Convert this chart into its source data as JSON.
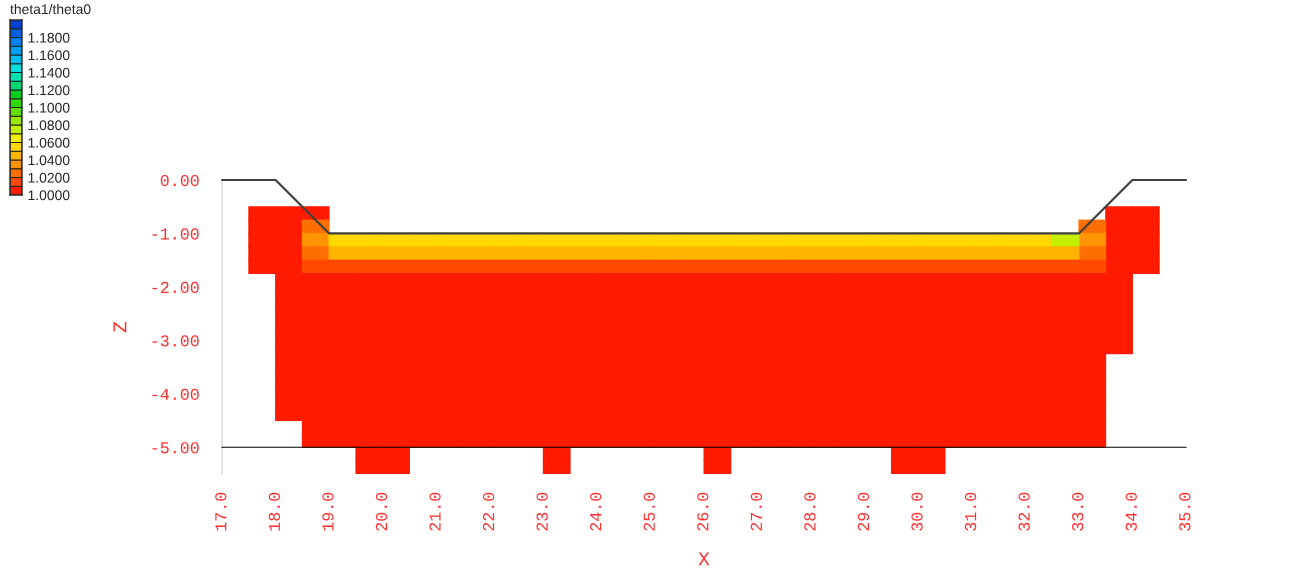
{
  "chart_data": {
    "type": "scatter",
    "xlabel": "X",
    "ylabel": "Z",
    "clabel": "theta1/theta0",
    "marker": "square",
    "xlim": [
      17,
      35
    ],
    "ylim": [
      -5.5,
      0
    ],
    "xticks": [
      {
        "value": 17,
        "label": "17.0"
      },
      {
        "value": 18,
        "label": "18.0"
      },
      {
        "value": 19,
        "label": "19.0"
      },
      {
        "value": 20,
        "label": "20.0"
      },
      {
        "value": 21,
        "label": "21.0"
      },
      {
        "value": 22,
        "label": "22.0"
      },
      {
        "value": 23,
        "label": "23.0"
      },
      {
        "value": 24,
        "label": "24.0"
      },
      {
        "value": 25,
        "label": "25.0"
      },
      {
        "value": 26,
        "label": "26.0"
      },
      {
        "value": 27,
        "label": "27.0"
      },
      {
        "value": 28,
        "label": "28.0"
      },
      {
        "value": 29,
        "label": "29.0"
      },
      {
        "value": 30,
        "label": "30.0"
      },
      {
        "value": 31,
        "label": "31.0"
      },
      {
        "value": 32,
        "label": "32.0"
      },
      {
        "value": 33,
        "label": "33.0"
      },
      {
        "value": 34,
        "label": "34.0"
      },
      {
        "value": 35,
        "label": "35.0"
      }
    ],
    "yticks": [
      {
        "value": 0,
        "label": "0.00"
      },
      {
        "value": -1,
        "label": "-1.00"
      },
      {
        "value": -2,
        "label": "-2.00"
      },
      {
        "value": -3,
        "label": "-3.00"
      },
      {
        "value": -4,
        "label": "-4.00"
      },
      {
        "value": -5,
        "label": "-5.00"
      }
    ],
    "clim": [
      1.0,
      1.2
    ],
    "cticks": [
      {
        "value": 1.0,
        "label": "1.0000"
      },
      {
        "value": 1.02,
        "label": "1.0200"
      },
      {
        "value": 1.04,
        "label": "1.0400"
      },
      {
        "value": 1.06,
        "label": "1.0600"
      },
      {
        "value": 1.08,
        "label": "1.0800"
      },
      {
        "value": 1.1,
        "label": "1.1000"
      },
      {
        "value": 1.12,
        "label": "1.1200"
      },
      {
        "value": 1.14,
        "label": "1.1400"
      },
      {
        "value": 1.16,
        "label": "1.1600"
      },
      {
        "value": 1.18,
        "label": "1.1800"
      }
    ],
    "colors": [
      "#ff1a00",
      "#ff4800",
      "#ff6e00",
      "#ff9400",
      "#ffb400",
      "#ffd800",
      "#f0f000",
      "#c4f000",
      "#96e800",
      "#60e000",
      "#30d800",
      "#00d020",
      "#00d870",
      "#00e0b0",
      "#00e0e0",
      "#00c0f0",
      "#00a0f0",
      "#0080f0",
      "#0060e0",
      "#0040d0"
    ],
    "series": [
      {
        "type": "scatter",
        "x": [
          17.75,
          18.25,
          18.75,
          33.75,
          34.25
        ],
        "values": [
          -0.625,
          -0.625,
          -0.625,
          -0.625,
          -0.625
        ],
        "cvalues": [
          1.0,
          1.0,
          1.0,
          1.0,
          1.0
        ]
      },
      {
        "type": "scatter",
        "x": [
          17.75,
          18.25,
          33.75,
          34.25
        ],
        "values": [
          -0.875,
          -0.875,
          -0.875,
          -0.875
        ],
        "cvalues": [
          1.0,
          1.0,
          1.0,
          1.0
        ]
      },
      {
        "type": "scatter",
        "x": [
          18.75,
          33.25
        ],
        "values": [
          -0.875,
          -0.875
        ],
        "cvalues": [
          1.02,
          1.02
        ]
      },
      {
        "type": "scatter",
        "x": [
          17.75,
          18.25,
          33.75,
          34.25
        ],
        "values": [
          -1.125,
          -1.125,
          -1.125,
          -1.125
        ],
        "cvalues": [
          1.0,
          1.0,
          1.0,
          1.0
        ]
      },
      {
        "type": "scatter",
        "x": [
          18.75,
          33.25
        ],
        "values": [
          -1.125,
          -1.125
        ],
        "cvalues": [
          1.03,
          1.03
        ]
      },
      {
        "type": "scatter",
        "x": [
          19.25,
          19.75,
          20.25,
          20.75,
          21.25,
          21.75,
          22.25,
          22.75,
          23.25,
          23.75,
          24.25,
          24.75,
          25.25,
          25.75,
          26.25,
          26.75,
          27.25,
          27.75,
          28.25,
          28.75,
          29.25,
          29.75,
          30.25,
          30.75,
          31.25,
          31.75,
          32.25
        ],
        "values": [
          -1.125,
          -1.125,
          -1.125,
          -1.125,
          -1.125,
          -1.125,
          -1.125,
          -1.125,
          -1.125,
          -1.125,
          -1.125,
          -1.125,
          -1.125,
          -1.125,
          -1.125,
          -1.125,
          -1.125,
          -1.125,
          -1.125,
          -1.125,
          -1.125,
          -1.125,
          -1.125,
          -1.125,
          -1.125,
          -1.125,
          -1.125
        ],
        "cvalues": [
          1.05,
          1.05,
          1.05,
          1.05,
          1.05,
          1.05,
          1.05,
          1.05,
          1.05,
          1.05,
          1.05,
          1.05,
          1.05,
          1.05,
          1.05,
          1.05,
          1.05,
          1.05,
          1.05,
          1.05,
          1.05,
          1.05,
          1.05,
          1.05,
          1.05,
          1.05,
          1.05
        ]
      },
      {
        "type": "scatter",
        "x": [
          32.75
        ],
        "values": [
          -1.125
        ],
        "cvalues": [
          1.07
        ]
      },
      {
        "type": "scatter",
        "x": [
          17.75,
          18.25,
          33.75,
          34.25
        ],
        "values": [
          -1.375,
          -1.375,
          -1.375,
          -1.375
        ],
        "cvalues": [
          1.0,
          1.0,
          1.0,
          1.0
        ]
      },
      {
        "type": "scatter",
        "x": [
          18.75,
          33.25
        ],
        "values": [
          -1.375,
          -1.375
        ],
        "cvalues": [
          1.02,
          1.02
        ]
      },
      {
        "type": "scatter",
        "x": [
          19.25,
          19.75,
          20.25,
          20.75,
          21.25,
          21.75,
          22.25,
          22.75,
          23.25,
          23.75,
          24.25,
          24.75,
          25.25,
          25.75,
          26.25,
          26.75,
          27.25,
          27.75,
          28.25,
          28.75,
          29.25,
          29.75,
          30.25,
          30.75,
          31.25,
          31.75,
          32.25,
          32.75
        ],
        "values": [
          -1.375,
          -1.375,
          -1.375,
          -1.375,
          -1.375,
          -1.375,
          -1.375,
          -1.375,
          -1.375,
          -1.375,
          -1.375,
          -1.375,
          -1.375,
          -1.375,
          -1.375,
          -1.375,
          -1.375,
          -1.375,
          -1.375,
          -1.375,
          -1.375,
          -1.375,
          -1.375,
          -1.375,
          -1.375,
          -1.375,
          -1.375,
          -1.375
        ],
        "cvalues": [
          1.04,
          1.04,
          1.04,
          1.04,
          1.04,
          1.04,
          1.04,
          1.04,
          1.04,
          1.04,
          1.04,
          1.04,
          1.04,
          1.04,
          1.04,
          1.04,
          1.04,
          1.04,
          1.04,
          1.04,
          1.04,
          1.04,
          1.04,
          1.04,
          1.04,
          1.04,
          1.04,
          1.04
        ]
      },
      {
        "type": "scatter",
        "x": [
          17.75,
          18.25,
          33.75,
          34.25
        ],
        "values": [
          -1.625,
          -1.625,
          -1.625,
          -1.625
        ],
        "cvalues": [
          1.0,
          1.0,
          1.0,
          1.0
        ]
      },
      {
        "type": "scatter",
        "x": [
          18.75,
          19.25,
          19.75,
          20.25,
          20.75,
          21.25,
          21.75,
          22.25,
          22.75,
          23.25,
          23.75,
          24.25,
          24.75,
          25.25,
          25.75,
          26.25,
          26.75,
          27.25,
          27.75,
          28.25,
          28.75,
          29.25,
          29.75,
          30.25,
          30.75,
          31.25,
          31.75,
          32.25,
          32.75,
          33.25
        ],
        "values": [
          -1.625,
          -1.625,
          -1.625,
          -1.625,
          -1.625,
          -1.625,
          -1.625,
          -1.625,
          -1.625,
          -1.625,
          -1.625,
          -1.625,
          -1.625,
          -1.625,
          -1.625,
          -1.625,
          -1.625,
          -1.625,
          -1.625,
          -1.625,
          -1.625,
          -1.625,
          -1.625,
          -1.625,
          -1.625,
          -1.625,
          -1.625,
          -1.625,
          -1.625,
          -1.625
        ],
        "cvalues": [
          1.01,
          1.01,
          1.01,
          1.01,
          1.01,
          1.01,
          1.01,
          1.01,
          1.01,
          1.01,
          1.01,
          1.01,
          1.01,
          1.01,
          1.01,
          1.01,
          1.01,
          1.01,
          1.01,
          1.01,
          1.01,
          1.01,
          1.01,
          1.01,
          1.01,
          1.01,
          1.01,
          1.01,
          1.01,
          1.01
        ]
      },
      {
        "type": "scatter",
        "x": [
          18.25,
          18.75,
          19.25,
          19.75,
          20.25,
          20.75,
          21.25,
          21.75,
          22.25,
          22.75,
          23.25,
          23.75,
          24.25,
          24.75,
          25.25,
          25.75,
          26.25,
          26.75,
          27.25,
          27.75,
          28.25,
          28.75,
          29.25,
          29.75,
          30.25,
          30.75,
          31.25,
          31.75,
          32.25,
          32.75,
          33.25,
          33.75
        ],
        "values": [
          -1.875,
          -1.875,
          -1.875,
          -1.875,
          -1.875,
          -1.875,
          -1.875,
          -1.875,
          -1.875,
          -1.875,
          -1.875,
          -1.875,
          -1.875,
          -1.875,
          -1.875,
          -1.875,
          -1.875,
          -1.875,
          -1.875,
          -1.875,
          -1.875,
          -1.875,
          -1.875,
          -1.875,
          -1.875,
          -1.875,
          -1.875,
          -1.875,
          -1.875,
          -1.875,
          -1.875,
          -1.875
        ],
        "cvalues": [
          1.0,
          1.0,
          1.0,
          1.0,
          1.0,
          1.0,
          1.0,
          1.0,
          1.0,
          1.0,
          1.0,
          1.0,
          1.0,
          1.0,
          1.0,
          1.0,
          1.0,
          1.0,
          1.0,
          1.0,
          1.0,
          1.0,
          1.0,
          1.0,
          1.0,
          1.0,
          1.0,
          1.0,
          1.0,
          1.0,
          1.0,
          1.0
        ]
      },
      {
        "type": "scatter",
        "x": [
          18.25,
          18.75,
          19.25,
          19.75,
          20.25,
          20.75,
          21.25,
          21.75,
          22.25,
          22.75,
          23.25,
          23.75,
          24.25,
          24.75,
          25.25,
          25.75,
          26.25,
          26.75,
          27.25,
          27.75,
          28.25,
          28.75,
          29.25,
          29.75,
          30.25,
          30.75,
          31.25,
          31.75,
          32.25,
          32.75,
          33.25,
          33.75
        ],
        "values": [
          -2.125,
          -2.125,
          -2.125,
          -2.125,
          -2.125,
          -2.125,
          -2.125,
          -2.125,
          -2.125,
          -2.125,
          -2.125,
          -2.125,
          -2.125,
          -2.125,
          -2.125,
          -2.125,
          -2.125,
          -2.125,
          -2.125,
          -2.125,
          -2.125,
          -2.125,
          -2.125,
          -2.125,
          -2.125,
          -2.125,
          -2.125,
          -2.125,
          -2.125,
          -2.125,
          -2.125,
          -2.125
        ],
        "cvalues": [
          1.0,
          1.0,
          1.0,
          1.0,
          1.0,
          1.0,
          1.0,
          1.0,
          1.0,
          1.0,
          1.0,
          1.0,
          1.0,
          1.0,
          1.0,
          1.0,
          1.0,
          1.0,
          1.0,
          1.0,
          1.0,
          1.0,
          1.0,
          1.0,
          1.0,
          1.0,
          1.0,
          1.0,
          1.0,
          1.0,
          1.0,
          1.0
        ]
      },
      {
        "type": "scatter",
        "x": [
          18.25,
          18.75,
          19.25,
          19.75,
          20.25,
          20.75,
          21.25,
          21.75,
          22.25,
          22.75,
          23.25,
          23.75,
          24.25,
          24.75,
          25.25,
          25.75,
          26.25,
          26.75,
          27.25,
          27.75,
          28.25,
          28.75,
          29.25,
          29.75,
          30.25,
          30.75,
          31.25,
          31.75,
          32.25,
          32.75,
          33.25,
          33.75
        ],
        "values": [
          -2.375,
          -2.375,
          -2.375,
          -2.375,
          -2.375,
          -2.375,
          -2.375,
          -2.375,
          -2.375,
          -2.375,
          -2.375,
          -2.375,
          -2.375,
          -2.375,
          -2.375,
          -2.375,
          -2.375,
          -2.375,
          -2.375,
          -2.375,
          -2.375,
          -2.375,
          -2.375,
          -2.375,
          -2.375,
          -2.375,
          -2.375,
          -2.375,
          -2.375,
          -2.375,
          -2.375,
          -2.375
        ],
        "cvalues": [
          1.0,
          1.0,
          1.0,
          1.0,
          1.0,
          1.0,
          1.0,
          1.0,
          1.0,
          1.0,
          1.0,
          1.0,
          1.0,
          1.0,
          1.0,
          1.0,
          1.0,
          1.0,
          1.0,
          1.0,
          1.0,
          1.0,
          1.0,
          1.0,
          1.0,
          1.0,
          1.0,
          1.0,
          1.0,
          1.0,
          1.0,
          1.0
        ]
      },
      {
        "type": "scatter",
        "x": [
          18.25,
          18.75,
          19.25,
          19.75,
          20.25,
          20.75,
          21.25,
          21.75,
          22.25,
          22.75,
          23.25,
          23.75,
          24.25,
          24.75,
          25.25,
          25.75,
          26.25,
          26.75,
          27.25,
          27.75,
          28.25,
          28.75,
          29.25,
          29.75,
          30.25,
          30.75,
          31.25,
          31.75,
          32.25,
          32.75,
          33.25,
          33.75
        ],
        "values": [
          -2.625,
          -2.625,
          -2.625,
          -2.625,
          -2.625,
          -2.625,
          -2.625,
          -2.625,
          -2.625,
          -2.625,
          -2.625,
          -2.625,
          -2.625,
          -2.625,
          -2.625,
          -2.625,
          -2.625,
          -2.625,
          -2.625,
          -2.625,
          -2.625,
          -2.625,
          -2.625,
          -2.625,
          -2.625,
          -2.625,
          -2.625,
          -2.625,
          -2.625,
          -2.625,
          -2.625,
          -2.625
        ],
        "cvalues": [
          1.0,
          1.0,
          1.0,
          1.0,
          1.0,
          1.0,
          1.0,
          1.0,
          1.0,
          1.0,
          1.0,
          1.0,
          1.0,
          1.0,
          1.0,
          1.0,
          1.0,
          1.0,
          1.0,
          1.0,
          1.0,
          1.0,
          1.0,
          1.0,
          1.0,
          1.0,
          1.0,
          1.0,
          1.0,
          1.0,
          1.0,
          1.0
        ]
      },
      {
        "type": "scatter",
        "x": [
          18.25,
          18.75,
          19.25,
          19.75,
          20.25,
          20.75,
          21.25,
          21.75,
          22.25,
          22.75,
          23.25,
          23.75,
          24.25,
          24.75,
          25.25,
          25.75,
          26.25,
          26.75,
          27.25,
          27.75,
          28.25,
          28.75,
          29.25,
          29.75,
          30.25,
          30.75,
          31.25,
          31.75,
          32.25,
          32.75,
          33.25,
          33.75
        ],
        "values": [
          -2.875,
          -2.875,
          -2.875,
          -2.875,
          -2.875,
          -2.875,
          -2.875,
          -2.875,
          -2.875,
          -2.875,
          -2.875,
          -2.875,
          -2.875,
          -2.875,
          -2.875,
          -2.875,
          -2.875,
          -2.875,
          -2.875,
          -2.875,
          -2.875,
          -2.875,
          -2.875,
          -2.875,
          -2.875,
          -2.875,
          -2.875,
          -2.875,
          -2.875,
          -2.875,
          -2.875,
          -2.875
        ],
        "cvalues": [
          1.0,
          1.0,
          1.0,
          1.0,
          1.0,
          1.0,
          1.0,
          1.0,
          1.0,
          1.0,
          1.0,
          1.0,
          1.0,
          1.0,
          1.0,
          1.0,
          1.0,
          1.0,
          1.0,
          1.0,
          1.0,
          1.0,
          1.0,
          1.0,
          1.0,
          1.0,
          1.0,
          1.0,
          1.0,
          1.0,
          1.0,
          1.0
        ]
      },
      {
        "type": "scatter",
        "x": [
          18.25,
          18.75,
          19.25,
          19.75,
          20.25,
          20.75,
          21.25,
          21.75,
          22.25,
          22.75,
          23.25,
          23.75,
          24.25,
          24.75,
          25.25,
          25.75,
          26.25,
          26.75,
          27.25,
          27.75,
          28.25,
          28.75,
          29.25,
          29.75,
          30.25,
          30.75,
          31.25,
          31.75,
          32.25,
          32.75,
          33.25,
          33.75
        ],
        "values": [
          -3.125,
          -3.125,
          -3.125,
          -3.125,
          -3.125,
          -3.125,
          -3.125,
          -3.125,
          -3.125,
          -3.125,
          -3.125,
          -3.125,
          -3.125,
          -3.125,
          -3.125,
          -3.125,
          -3.125,
          -3.125,
          -3.125,
          -3.125,
          -3.125,
          -3.125,
          -3.125,
          -3.125,
          -3.125,
          -3.125,
          -3.125,
          -3.125,
          -3.125,
          -3.125,
          -3.125,
          -3.125
        ],
        "cvalues": [
          1.0,
          1.0,
          1.0,
          1.0,
          1.0,
          1.0,
          1.0,
          1.0,
          1.0,
          1.0,
          1.0,
          1.0,
          1.0,
          1.0,
          1.0,
          1.0,
          1.0,
          1.0,
          1.0,
          1.0,
          1.0,
          1.0,
          1.0,
          1.0,
          1.0,
          1.0,
          1.0,
          1.0,
          1.0,
          1.0,
          1.0,
          1.0
        ]
      },
      {
        "type": "scatter",
        "x": [
          18.25,
          18.75,
          19.25,
          19.75,
          20.25,
          20.75,
          21.25,
          21.75,
          22.25,
          22.75,
          23.25,
          23.75,
          24.25,
          24.75,
          25.25,
          25.75,
          26.25,
          26.75,
          27.25,
          27.75,
          28.25,
          28.75,
          29.25,
          29.75,
          30.25,
          30.75,
          31.25,
          31.75,
          32.25,
          32.75,
          33.25
        ],
        "values": [
          -3.375,
          -3.375,
          -3.375,
          -3.375,
          -3.375,
          -3.375,
          -3.375,
          -3.375,
          -3.375,
          -3.375,
          -3.375,
          -3.375,
          -3.375,
          -3.375,
          -3.375,
          -3.375,
          -3.375,
          -3.375,
          -3.375,
          -3.375,
          -3.375,
          -3.375,
          -3.375,
          -3.375,
          -3.375,
          -3.375,
          -3.375,
          -3.375,
          -3.375,
          -3.375,
          -3.375
        ],
        "cvalues": [
          1.0,
          1.0,
          1.0,
          1.0,
          1.0,
          1.0,
          1.0,
          1.0,
          1.0,
          1.0,
          1.0,
          1.0,
          1.0,
          1.0,
          1.0,
          1.0,
          1.0,
          1.0,
          1.0,
          1.0,
          1.0,
          1.0,
          1.0,
          1.0,
          1.0,
          1.0,
          1.0,
          1.0,
          1.0,
          1.0,
          1.0
        ]
      },
      {
        "type": "scatter",
        "x": [
          18.25,
          18.75,
          19.25,
          19.75,
          20.25,
          20.75,
          21.25,
          21.75,
          22.25,
          22.75,
          23.25,
          23.75,
          24.25,
          24.75,
          25.25,
          25.75,
          26.25,
          26.75,
          27.25,
          27.75,
          28.25,
          28.75,
          29.25,
          29.75,
          30.25,
          30.75,
          31.25,
          31.75,
          32.25,
          32.75,
          33.25
        ],
        "values": [
          -3.625,
          -3.625,
          -3.625,
          -3.625,
          -3.625,
          -3.625,
          -3.625,
          -3.625,
          -3.625,
          -3.625,
          -3.625,
          -3.625,
          -3.625,
          -3.625,
          -3.625,
          -3.625,
          -3.625,
          -3.625,
          -3.625,
          -3.625,
          -3.625,
          -3.625,
          -3.625,
          -3.625,
          -3.625,
          -3.625,
          -3.625,
          -3.625,
          -3.625,
          -3.625,
          -3.625
        ],
        "cvalues": [
          1.0,
          1.0,
          1.0,
          1.0,
          1.0,
          1.0,
          1.0,
          1.0,
          1.0,
          1.0,
          1.0,
          1.0,
          1.0,
          1.0,
          1.0,
          1.0,
          1.0,
          1.0,
          1.0,
          1.0,
          1.0,
          1.0,
          1.0,
          1.0,
          1.0,
          1.0,
          1.0,
          1.0,
          1.0,
          1.0,
          1.0
        ]
      },
      {
        "type": "scatter",
        "x": [
          18.25,
          18.75,
          19.25,
          19.75,
          20.25,
          20.75,
          21.25,
          21.75,
          22.25,
          22.75,
          23.25,
          23.75,
          24.25,
          24.75,
          25.25,
          25.75,
          26.25,
          26.75,
          27.25,
          27.75,
          28.25,
          28.75,
          29.25,
          29.75,
          30.25,
          30.75,
          31.25,
          31.75,
          32.25,
          32.75,
          33.25
        ],
        "values": [
          -3.875,
          -3.875,
          -3.875,
          -3.875,
          -3.875,
          -3.875,
          -3.875,
          -3.875,
          -3.875,
          -3.875,
          -3.875,
          -3.875,
          -3.875,
          -3.875,
          -3.875,
          -3.875,
          -3.875,
          -3.875,
          -3.875,
          -3.875,
          -3.875,
          -3.875,
          -3.875,
          -3.875,
          -3.875,
          -3.875,
          -3.875,
          -3.875,
          -3.875,
          -3.875,
          -3.875
        ],
        "cvalues": [
          1.0,
          1.0,
          1.0,
          1.0,
          1.0,
          1.0,
          1.0,
          1.0,
          1.0,
          1.0,
          1.0,
          1.0,
          1.0,
          1.0,
          1.0,
          1.0,
          1.0,
          1.0,
          1.0,
          1.0,
          1.0,
          1.0,
          1.0,
          1.0,
          1.0,
          1.0,
          1.0,
          1.0,
          1.0,
          1.0,
          1.0
        ]
      },
      {
        "type": "scatter",
        "x": [
          18.25,
          18.75,
          19.25,
          19.75,
          20.25,
          20.75,
          21.25,
          21.75,
          22.25,
          22.75,
          23.25,
          23.75,
          24.25,
          24.75,
          25.25,
          25.75,
          26.25,
          26.75,
          27.25,
          27.75,
          28.25,
          28.75,
          29.25,
          29.75,
          30.25,
          30.75,
          31.25,
          31.75,
          32.25,
          32.75,
          33.25
        ],
        "values": [
          -4.125,
          -4.125,
          -4.125,
          -4.125,
          -4.125,
          -4.125,
          -4.125,
          -4.125,
          -4.125,
          -4.125,
          -4.125,
          -4.125,
          -4.125,
          -4.125,
          -4.125,
          -4.125,
          -4.125,
          -4.125,
          -4.125,
          -4.125,
          -4.125,
          -4.125,
          -4.125,
          -4.125,
          -4.125,
          -4.125,
          -4.125,
          -4.125,
          -4.125,
          -4.125,
          -4.125
        ],
        "cvalues": [
          1.0,
          1.0,
          1.0,
          1.0,
          1.0,
          1.0,
          1.0,
          1.0,
          1.0,
          1.0,
          1.0,
          1.0,
          1.0,
          1.0,
          1.0,
          1.0,
          1.0,
          1.0,
          1.0,
          1.0,
          1.0,
          1.0,
          1.0,
          1.0,
          1.0,
          1.0,
          1.0,
          1.0,
          1.0,
          1.0,
          1.0
        ]
      },
      {
        "type": "scatter",
        "x": [
          18.25,
          18.75,
          19.25,
          19.75,
          20.25,
          20.75,
          21.25,
          21.75,
          22.25,
          22.75,
          23.25,
          23.75,
          24.25,
          24.75,
          25.25,
          25.75,
          26.25,
          26.75,
          27.25,
          27.75,
          28.25,
          28.75,
          29.25,
          29.75,
          30.25,
          30.75,
          31.25,
          31.75,
          32.25,
          32.75,
          33.25
        ],
        "values": [
          -4.375,
          -4.375,
          -4.375,
          -4.375,
          -4.375,
          -4.375,
          -4.375,
          -4.375,
          -4.375,
          -4.375,
          -4.375,
          -4.375,
          -4.375,
          -4.375,
          -4.375,
          -4.375,
          -4.375,
          -4.375,
          -4.375,
          -4.375,
          -4.375,
          -4.375,
          -4.375,
          -4.375,
          -4.375,
          -4.375,
          -4.375,
          -4.375,
          -4.375,
          -4.375,
          -4.375
        ],
        "cvalues": [
          1.0,
          1.0,
          1.0,
          1.0,
          1.0,
          1.0,
          1.0,
          1.0,
          1.0,
          1.0,
          1.0,
          1.0,
          1.0,
          1.0,
          1.0,
          1.0,
          1.0,
          1.0,
          1.0,
          1.0,
          1.0,
          1.0,
          1.0,
          1.0,
          1.0,
          1.0,
          1.0,
          1.0,
          1.0,
          1.0,
          1.0
        ]
      },
      {
        "type": "scatter",
        "x": [
          18.75,
          19.25,
          19.75,
          20.25,
          20.75,
          21.25,
          21.75,
          22.25,
          22.75,
          23.25,
          23.75,
          24.25,
          24.75,
          25.25,
          25.75,
          26.25,
          26.75,
          27.25,
          27.75,
          28.25,
          28.75,
          29.25,
          29.75,
          30.25,
          30.75,
          31.25,
          31.75,
          32.25,
          32.75,
          33.25
        ],
        "values": [
          -4.625,
          -4.625,
          -4.625,
          -4.625,
          -4.625,
          -4.625,
          -4.625,
          -4.625,
          -4.625,
          -4.625,
          -4.625,
          -4.625,
          -4.625,
          -4.625,
          -4.625,
          -4.625,
          -4.625,
          -4.625,
          -4.625,
          -4.625,
          -4.625,
          -4.625,
          -4.625,
          -4.625,
          -4.625,
          -4.625,
          -4.625,
          -4.625,
          -4.625,
          -4.625
        ],
        "cvalues": [
          1.0,
          1.0,
          1.0,
          1.0,
          1.0,
          1.0,
          1.0,
          1.0,
          1.0,
          1.0,
          1.0,
          1.0,
          1.0,
          1.0,
          1.0,
          1.0,
          1.0,
          1.0,
          1.0,
          1.0,
          1.0,
          1.0,
          1.0,
          1.0,
          1.0,
          1.0,
          1.0,
          1.0,
          1.0,
          1.0
        ]
      },
      {
        "type": "scatter",
        "x": [
          18.75,
          19.25,
          19.75,
          20.25,
          20.75,
          21.25,
          21.75,
          22.25,
          22.75,
          23.25,
          23.75,
          24.25,
          24.75,
          25.25,
          25.75,
          26.25,
          26.75,
          27.25,
          27.75,
          28.25,
          28.75,
          29.25,
          29.75,
          30.25,
          30.75,
          31.25,
          31.75,
          32.25,
          32.75,
          33.25
        ],
        "values": [
          -4.875,
          -4.875,
          -4.875,
          -4.875,
          -4.875,
          -4.875,
          -4.875,
          -4.875,
          -4.875,
          -4.875,
          -4.875,
          -4.875,
          -4.875,
          -4.875,
          -4.875,
          -4.875,
          -4.875,
          -4.875,
          -4.875,
          -4.875,
          -4.875,
          -4.875,
          -4.875,
          -4.875,
          -4.875,
          -4.875,
          -4.875,
          -4.875,
          -4.875,
          -4.875
        ],
        "cvalues": [
          1.0,
          1.0,
          1.0,
          1.0,
          1.0,
          1.0,
          1.0,
          1.0,
          1.0,
          1.0,
          1.0,
          1.0,
          1.0,
          1.0,
          1.0,
          1.0,
          1.0,
          1.0,
          1.0,
          1.0,
          1.0,
          1.0,
          1.0,
          1.0,
          1.0,
          1.0,
          1.0,
          1.0,
          1.0,
          1.0
        ]
      },
      {
        "type": "scatter",
        "x": [
          19.75,
          20.25,
          23.25,
          26.25,
          29.75,
          30.25
        ],
        "values": [
          -5.125,
          -5.125,
          -5.125,
          -5.125,
          -5.125,
          -5.125
        ],
        "cvalues": [
          1.0,
          1.0,
          1.0,
          1.0,
          1.0,
          1.0
        ]
      },
      {
        "type": "scatter",
        "x": [
          19.75,
          20.25,
          23.25,
          26.25,
          29.75,
          30.25
        ],
        "values": [
          -5.375,
          -5.375,
          -5.375,
          -5.375,
          -5.375,
          -5.375
        ],
        "cvalues": [
          1.0,
          1.0,
          1.0,
          1.0,
          1.0,
          1.0
        ]
      },
      {
        "type": "line",
        "marker": "none",
        "color": "#404040",
        "x": [
          17,
          18,
          19,
          33,
          34,
          35
        ],
        "values": [
          0,
          0,
          -1,
          -1,
          0,
          0
        ]
      }
    ]
  }
}
